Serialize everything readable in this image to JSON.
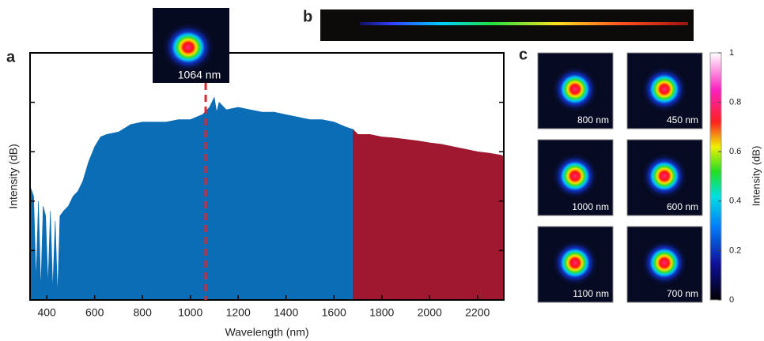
{
  "chart_data": {
    "type": "area",
    "panel_labels": [
      "a",
      "b",
      "c"
    ],
    "x_label": "Wavelength (nm)",
    "y_label": "Intensity (dB)",
    "xlim": [
      330,
      2310
    ],
    "ylim": [
      0,
      5
    ],
    "xticks": [
      400,
      600,
      800,
      1000,
      1200,
      1400,
      1600,
      1800,
      2000,
      2200
    ],
    "yticks": [
      1,
      2,
      3,
      4
    ],
    "series": [
      {
        "color": "#0a6db5",
        "x": [
          330,
          345,
          355,
          365,
          375,
          385,
          395,
          405,
          415,
          425,
          435,
          445,
          455,
          470,
          490,
          510,
          530,
          550,
          575,
          600,
          625,
          650,
          700,
          750,
          800,
          850,
          900,
          950,
          1000,
          1050,
          1080,
          1100,
          1110,
          1120,
          1150,
          1200,
          1250,
          1300,
          1350,
          1400,
          1450,
          1500,
          1550,
          1600,
          1650,
          1680
        ],
        "values": [
          2.3,
          2.1,
          0.4,
          2.0,
          0.2,
          1.9,
          1.7,
          0.3,
          1.8,
          0.2,
          1.6,
          0.1,
          1.7,
          1.8,
          1.9,
          2.1,
          2.2,
          2.4,
          2.8,
          3.1,
          3.3,
          3.35,
          3.4,
          3.55,
          3.6,
          3.6,
          3.6,
          3.65,
          3.65,
          3.75,
          3.9,
          4.1,
          3.8,
          4.0,
          3.85,
          3.9,
          3.85,
          3.8,
          3.8,
          3.75,
          3.7,
          3.65,
          3.65,
          3.6,
          3.5,
          3.45
        ]
      },
      {
        "color": "#a0182f",
        "x": [
          1680,
          1700,
          1750,
          1800,
          1850,
          1900,
          1950,
          2000,
          2050,
          2100,
          2150,
          2200,
          2250,
          2300,
          2310
        ],
        "values": [
          3.45,
          3.35,
          3.35,
          3.3,
          3.28,
          3.25,
          3.22,
          3.18,
          3.15,
          3.1,
          3.05,
          3.0,
          2.97,
          2.93,
          2.9
        ]
      }
    ],
    "marker": {
      "x": 1064,
      "label": "1064 nm",
      "color": "#e0252b"
    },
    "beam_labels": [
      "800 nm",
      "450 nm",
      "1000 nm",
      "600 nm",
      "1100 nm",
      "700 nm"
    ],
    "colorbar": {
      "label": "Intensity (dB)",
      "lim": [
        0,
        1
      ],
      "ticks": [
        0,
        0.2,
        0.4,
        0.6,
        0.8,
        1
      ]
    }
  }
}
